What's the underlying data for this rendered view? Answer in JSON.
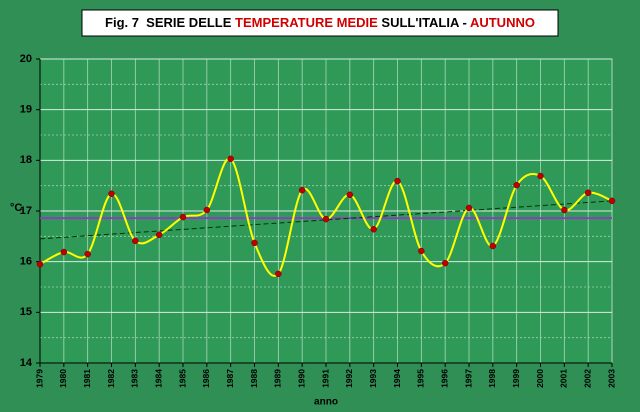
{
  "chart_data": {
    "type": "line",
    "title_parts": [
      {
        "text": "Fig. 7  SERIE DELLE ",
        "color": "#000000"
      },
      {
        "text": "TEMPERATURE MEDIE",
        "color": "#d00000"
      },
      {
        "text": " SULL'ITALIA - ",
        "color": "#000000"
      },
      {
        "text": "AUTUNNO",
        "color": "#d00000"
      }
    ],
    "x_label": "anno",
    "y_label": "°C",
    "categories": [
      "1979",
      "1980",
      "1981",
      "1982",
      "1983",
      "1984",
      "1985",
      "1986",
      "1987",
      "1988",
      "1989",
      "1990",
      "1991",
      "1992",
      "1993",
      "1994",
      "1995",
      "1996",
      "1997",
      "1998",
      "1999",
      "2000",
      "2001",
      "2002",
      "2003"
    ],
    "series": [
      {
        "color": "#ffff00",
        "marker_color": "#c00000",
        "values": [
          15.95,
          16.19,
          16.15,
          17.34,
          16.41,
          16.53,
          16.88,
          17.02,
          18.03,
          16.37,
          15.76,
          17.41,
          16.84,
          17.32,
          16.64,
          17.59,
          16.21,
          15.97,
          17.06,
          16.31,
          17.51,
          17.69,
          17.02,
          17.36,
          17.2
        ]
      }
    ],
    "mean_line": {
      "value": 16.86,
      "color": "#9b30d0"
    },
    "trend_line": {
      "values": [
        16.45,
        17.2
      ],
      "color": "#003300"
    },
    "ylim": [
      14,
      20
    ],
    "yticks": [
      14,
      15,
      16,
      17,
      18,
      19,
      20
    ],
    "minor_yticks": [
      14.5,
      15.5,
      16.5,
      17.5,
      18.5,
      19.5
    ],
    "grid": true
  }
}
